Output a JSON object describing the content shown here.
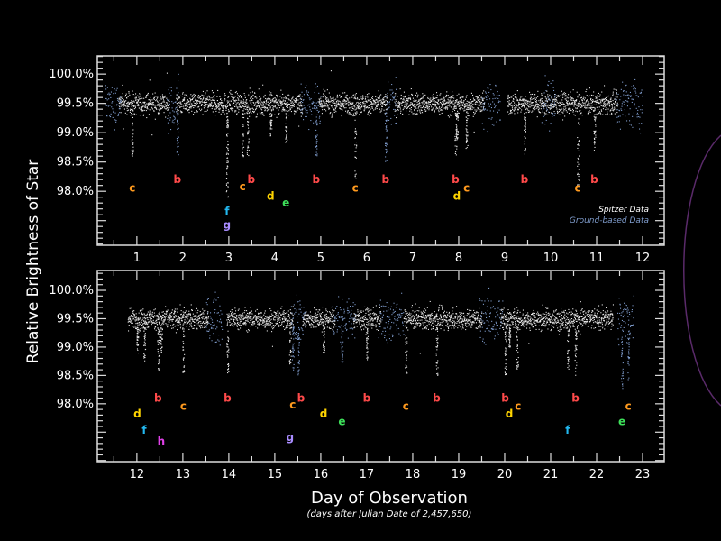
{
  "chart_data": {
    "type": "scatter",
    "ylabel": "Relative Brightness of Star",
    "xlabel": "Day of Observation",
    "xlabel_note": "(days after Julian Date of 2,457,650)",
    "legend": {
      "placement": "bottom-right of top panel",
      "entries": [
        {
          "name": "Spitzer Data",
          "color": "#ffffff"
        },
        {
          "name": "Ground-based Data",
          "color": "#7f9ccc"
        }
      ]
    },
    "baseline_brightness": 99.5,
    "planet_colors": {
      "b": "#ff4a4a",
      "c": "#ff9a1e",
      "d": "#ffd400",
      "e": "#3ee05a",
      "f": "#22b8f0",
      "g": "#a98cff",
      "h": "#e040e8"
    },
    "panels": [
      {
        "xlim": [
          0.14,
          12.47
        ],
        "ylim": [
          97.08,
          100.31
        ],
        "x_ticks": [
          1,
          2,
          3,
          4,
          5,
          6,
          7,
          8,
          9,
          10,
          11,
          12
        ],
        "y_ticks": [
          {
            "v": 100.0,
            "label": "100.0%"
          },
          {
            "v": 99.5,
            "label": "99.5%"
          },
          {
            "v": 99.0,
            "label": "99.0%"
          },
          {
            "v": 98.5,
            "label": "98.5%"
          },
          {
            "v": 98.0,
            "label": "98.0%"
          }
        ],
        "spitzer_ranges": [
          [
            0.6,
            1.7
          ],
          [
            1.85,
            4.6
          ],
          [
            4.95,
            6.45
          ],
          [
            6.6,
            8.55
          ],
          [
            9.05,
            11.45
          ]
        ],
        "ground_ranges": [
          [
            0.3,
            0.65
          ],
          [
            1.65,
            1.9
          ],
          [
            4.55,
            5.0
          ],
          [
            6.4,
            6.65
          ],
          [
            8.5,
            8.9
          ],
          [
            9.8,
            10.1
          ],
          [
            11.4,
            12.0
          ]
        ],
        "transits": [
          {
            "planet": "c",
            "day": 0.9,
            "label_level": 98.06,
            "min": 98.6
          },
          {
            "planet": "b",
            "day": 1.88,
            "label_level": 98.2,
            "min": 98.6
          },
          {
            "planet": "f",
            "day": 2.96,
            "label_level": 97.66,
            "min": 97.9
          },
          {
            "planet": "g",
            "day": 2.96,
            "label_level": 97.53,
            "min": 97.9
          },
          {
            "planet": "c",
            "day": 3.3,
            "label_level": 98.08,
            "min": 98.6
          },
          {
            "planet": "b",
            "day": 3.41,
            "label_level": 98.2,
            "min": 98.6
          },
          {
            "planet": "d",
            "day": 3.91,
            "label_level": 97.92,
            "min": 98.95
          },
          {
            "planet": "e",
            "day": 4.24,
            "label_level": 97.8,
            "min": 98.8
          },
          {
            "planet": "b",
            "day": 4.9,
            "label_level": 98.2,
            "min": 98.6
          },
          {
            "planet": "c",
            "day": 5.75,
            "label_level": 98.06,
            "min": 98.2
          },
          {
            "planet": "b",
            "day": 6.41,
            "label_level": 98.2,
            "min": 98.5
          },
          {
            "planet": "b",
            "day": 7.93,
            "label_level": 98.2,
            "min": 98.6
          },
          {
            "planet": "d",
            "day": 7.96,
            "label_level": 97.92,
            "min": 98.9
          },
          {
            "planet": "c",
            "day": 8.17,
            "label_level": 98.06,
            "min": 98.7
          },
          {
            "planet": "b",
            "day": 9.43,
            "label_level": 98.2,
            "min": 98.6
          },
          {
            "planet": "c",
            "day": 10.59,
            "label_level": 98.06,
            "min": 98.0
          },
          {
            "planet": "b",
            "day": 10.95,
            "label_level": 98.2,
            "min": 98.7
          }
        ]
      },
      {
        "xlim": [
          11.14,
          23.47
        ],
        "ylim": [
          96.98,
          100.35
        ],
        "x_ticks": [
          12,
          13,
          14,
          15,
          16,
          17,
          18,
          19,
          20,
          21,
          22,
          23
        ],
        "y_ticks": [
          {
            "v": 100.0,
            "label": "100.0%"
          },
          {
            "v": 99.5,
            "label": "99.5%"
          },
          {
            "v": 99.0,
            "label": "99.0%"
          },
          {
            "v": 98.5,
            "label": "98.5%"
          },
          {
            "v": 98.0,
            "label": "98.0%"
          }
        ],
        "spitzer_ranges": [
          [
            11.8,
            13.55
          ],
          [
            13.95,
            15.4
          ],
          [
            15.6,
            16.3
          ],
          [
            16.7,
            17.3
          ],
          [
            17.8,
            19.5
          ],
          [
            19.9,
            22.35
          ]
        ],
        "ground_ranges": [
          [
            13.5,
            13.85
          ],
          [
            15.35,
            15.65
          ],
          [
            16.25,
            16.75
          ],
          [
            17.25,
            17.8
          ],
          [
            19.45,
            19.95
          ],
          [
            22.45,
            22.8
          ]
        ],
        "transits": [
          {
            "planet": "d",
            "day": 12.01,
            "label_level": 97.82,
            "min": 98.9
          },
          {
            "planet": "f",
            "day": 12.16,
            "label_level": 97.54,
            "min": 98.7
          },
          {
            "planet": "b",
            "day": 12.46,
            "label_level": 98.1,
            "min": 98.6
          },
          {
            "planet": "h",
            "day": 12.53,
            "label_level": 97.34,
            "min": 98.9
          },
          {
            "planet": "c",
            "day": 13.01,
            "label_level": 97.96,
            "min": 98.5
          },
          {
            "planet": "b",
            "day": 13.97,
            "label_level": 98.1,
            "min": 98.5
          },
          {
            "planet": "g",
            "day": 15.33,
            "label_level": 97.41,
            "min": 98.7
          },
          {
            "planet": "c",
            "day": 15.39,
            "label_level": 97.98,
            "min": 98.6
          },
          {
            "planet": "b",
            "day": 15.51,
            "label_level": 98.1,
            "min": 98.5
          },
          {
            "planet": "d",
            "day": 16.06,
            "label_level": 97.82,
            "min": 98.9
          },
          {
            "planet": "e",
            "day": 16.46,
            "label_level": 97.69,
            "min": 98.7
          },
          {
            "planet": "b",
            "day": 17.0,
            "label_level": 98.1,
            "min": 98.7
          },
          {
            "planet": "c",
            "day": 17.85,
            "label_level": 97.96,
            "min": 98.5
          },
          {
            "planet": "b",
            "day": 18.52,
            "label_level": 98.1,
            "min": 98.5
          },
          {
            "planet": "b",
            "day": 20.01,
            "label_level": 98.1,
            "min": 98.5
          },
          {
            "planet": "d",
            "day": 20.1,
            "label_level": 97.82,
            "min": 99.0
          },
          {
            "planet": "c",
            "day": 20.27,
            "label_level": 97.96,
            "min": 98.6
          },
          {
            "planet": "f",
            "day": 21.37,
            "label_level": 97.54,
            "min": 98.6
          },
          {
            "planet": "b",
            "day": 21.54,
            "label_level": 98.1,
            "min": 98.5
          },
          {
            "planet": "e",
            "day": 22.55,
            "label_level": 97.69,
            "min": 98.2
          },
          {
            "planet": "c",
            "day": 22.69,
            "label_level": 97.96,
            "min": 98.4
          }
        ]
      }
    ]
  }
}
